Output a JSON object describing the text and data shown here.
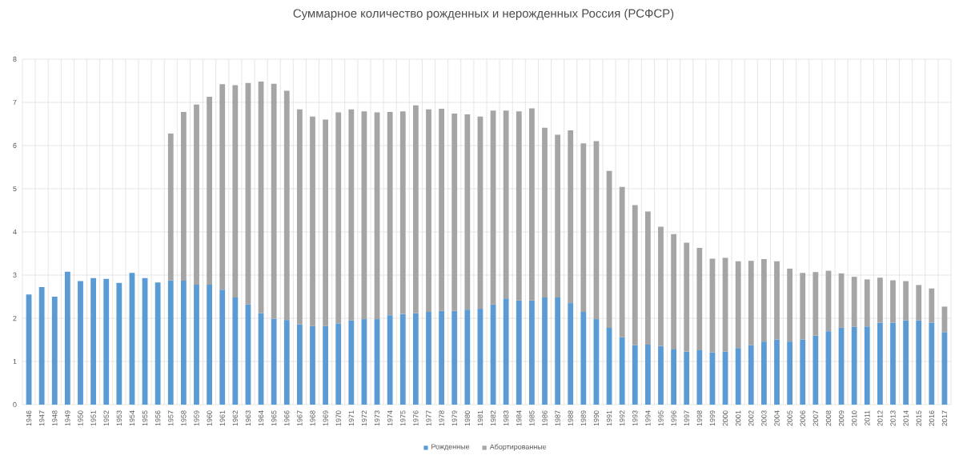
{
  "chart_data": {
    "type": "bar",
    "stacked": true,
    "title": "Суммарное количество рожденных и нерожденных  Россия (РСФСР)",
    "categories": [
      "1946",
      "1947",
      "1948",
      "1949",
      "1950",
      "1951",
      "1952",
      "1953",
      "1954",
      "1955",
      "1956",
      "1957",
      "1958",
      "1959",
      "1960",
      "1961",
      "1962",
      "1963",
      "1964",
      "1965",
      "1966",
      "1967",
      "1968",
      "1969",
      "1970",
      "1971",
      "1972",
      "1973",
      "1974",
      "1975",
      "1976",
      "1977",
      "1978",
      "1979",
      "1980",
      "1981",
      "1982",
      "1983",
      "1984",
      "1985",
      "1986",
      "1987",
      "1988",
      "1989",
      "1990",
      "1991",
      "1992",
      "1993",
      "1994",
      "1995",
      "1996",
      "1997",
      "1998",
      "1999",
      "2000",
      "2001",
      "2002",
      "2003",
      "2004",
      "2005",
      "2006",
      "2007",
      "2008",
      "2009",
      "2010",
      "2011",
      "2012",
      "2013",
      "2014",
      "2015",
      "2016",
      "2017"
    ],
    "series": [
      {
        "name": "Рожденные",
        "color": "#5b9bd5",
        "values": [
          2.55,
          2.72,
          2.5,
          3.08,
          2.86,
          2.93,
          2.91,
          2.82,
          3.05,
          2.93,
          2.83,
          2.88,
          2.87,
          2.78,
          2.78,
          2.66,
          2.48,
          2.32,
          2.12,
          1.99,
          1.96,
          1.86,
          1.82,
          1.82,
          1.88,
          1.95,
          1.98,
          1.98,
          2.07,
          2.1,
          2.12,
          2.15,
          2.17,
          2.17,
          2.2,
          2.22,
          2.32,
          2.46,
          2.41,
          2.41,
          2.48,
          2.48,
          2.35,
          2.15,
          1.98,
          1.78,
          1.56,
          1.38,
          1.39,
          1.36,
          1.28,
          1.23,
          1.26,
          1.21,
          1.23,
          1.31,
          1.38,
          1.46,
          1.51,
          1.46,
          1.51,
          1.6,
          1.7,
          1.78,
          1.8,
          1.81,
          1.9,
          1.9,
          1.95,
          1.95,
          1.9,
          1.68
        ]
      },
      {
        "name": "Абортированные",
        "color": "#a5a5a5",
        "values": [
          null,
          null,
          null,
          null,
          null,
          null,
          null,
          null,
          null,
          null,
          null,
          3.4,
          3.91,
          4.17,
          4.35,
          4.76,
          4.92,
          5.13,
          5.36,
          5.44,
          5.31,
          4.98,
          4.85,
          4.78,
          4.89,
          4.89,
          4.81,
          4.79,
          4.71,
          4.69,
          4.81,
          4.69,
          4.68,
          4.57,
          4.52,
          4.45,
          4.49,
          4.35,
          4.38,
          4.45,
          3.93,
          3.77,
          4.0,
          3.9,
          4.12,
          3.63,
          3.48,
          3.24,
          3.08,
          2.76,
          2.67,
          2.52,
          2.37,
          2.17,
          2.17,
          2.01,
          1.95,
          1.91,
          1.81,
          1.69,
          1.54,
          1.47,
          1.4,
          1.26,
          1.16,
          1.09,
          1.04,
          0.98,
          0.91,
          0.82,
          0.79,
          0.59
        ]
      }
    ],
    "ylim": [
      0,
      8
    ],
    "yticks": [
      0,
      1,
      2,
      3,
      4,
      5,
      6,
      7,
      8
    ],
    "grid": true,
    "legend": "bottom"
  }
}
